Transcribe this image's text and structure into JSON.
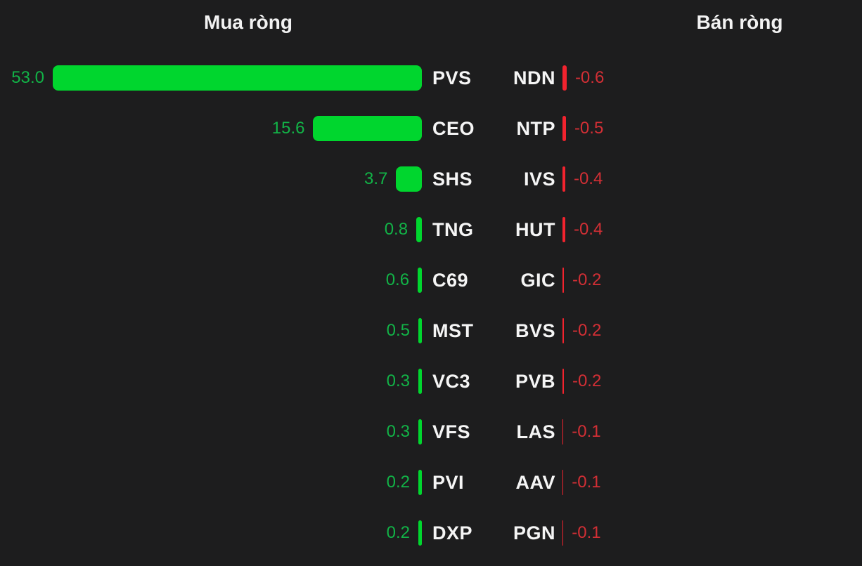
{
  "chart_data": {
    "type": "bar",
    "orientation": "horizontal",
    "title_left": "Mua ròng",
    "title_right": "Bán ròng",
    "legend": "none",
    "grid": false,
    "axis_labels": "none",
    "value_range_buy": [
      0,
      53.0
    ],
    "value_range_sell": [
      -0.6,
      0
    ],
    "buy": [
      {
        "ticker": "PVS",
        "value": 53.0,
        "label": "53.0"
      },
      {
        "ticker": "CEO",
        "value": 15.6,
        "label": "15.6"
      },
      {
        "ticker": "SHS",
        "value": 3.7,
        "label": "3.7"
      },
      {
        "ticker": "TNG",
        "value": 0.8,
        "label": "0.8"
      },
      {
        "ticker": "C69",
        "value": 0.6,
        "label": "0.6"
      },
      {
        "ticker": "MST",
        "value": 0.5,
        "label": "0.5"
      },
      {
        "ticker": "VC3",
        "value": 0.3,
        "label": "0.3"
      },
      {
        "ticker": "VFS",
        "value": 0.3,
        "label": "0.3"
      },
      {
        "ticker": "PVI",
        "value": 0.2,
        "label": "0.2"
      },
      {
        "ticker": "DXP",
        "value": 0.2,
        "label": "0.2"
      }
    ],
    "sell": [
      {
        "ticker": "NDN",
        "value": -0.6,
        "label": "-0.6"
      },
      {
        "ticker": "NTP",
        "value": -0.5,
        "label": "-0.5"
      },
      {
        "ticker": "IVS",
        "value": -0.4,
        "label": "-0.4"
      },
      {
        "ticker": "HUT",
        "value": -0.4,
        "label": "-0.4"
      },
      {
        "ticker": "GIC",
        "value": -0.2,
        "label": "-0.2"
      },
      {
        "ticker": "BVS",
        "value": -0.2,
        "label": "-0.2"
      },
      {
        "ticker": "PVB",
        "value": -0.2,
        "label": "-0.2"
      },
      {
        "ticker": "LAS",
        "value": -0.1,
        "label": "-0.1"
      },
      {
        "ticker": "AAV",
        "value": -0.1,
        "label": "-0.1"
      },
      {
        "ticker": "PGN",
        "value": -0.1,
        "label": "-0.1"
      }
    ],
    "colors": {
      "background": "#1d1d1e",
      "buy_bar": "#00d62e",
      "buy_value_text": "#12b347",
      "sell_bar": "#f2232e",
      "sell_value_text": "#d22f35",
      "header_text": "#f2f2f2",
      "ticker_text": "#f5f5f5"
    }
  }
}
